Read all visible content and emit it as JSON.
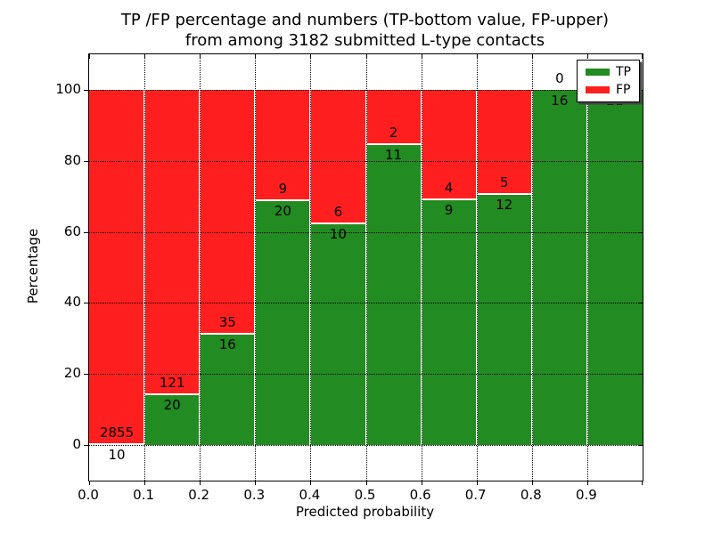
{
  "title": {
    "line1": "TP /FP percentage and numbers (TP-bottom value, FP-upper)",
    "line2": "from among 3182 submitted L-type contacts"
  },
  "axes": {
    "x_label": "Predicted probability",
    "y_label": "Percentage"
  },
  "legend": {
    "position": "upper right",
    "entries": [
      {
        "label": "TP",
        "color": "#228b22"
      },
      {
        "label": "FP",
        "color": "#ff1f1f"
      }
    ]
  },
  "chart_data": {
    "type": "bar",
    "stacked": true,
    "title": "TP /FP percentage and numbers (TP-bottom value, FP-upper)\nfrom among 3182 submitted L-type contacts",
    "xlabel": "Predicted probability",
    "ylabel": "Percentage",
    "xlim": [
      0.0,
      1.0
    ],
    "ylim": [
      -10,
      110
    ],
    "grid": "dotted",
    "bar_edge_color": "#ffffff",
    "bin_width": 0.1,
    "bin_starts": [
      0.0,
      0.1,
      0.2,
      0.3,
      0.4,
      0.5,
      0.6,
      0.7,
      0.8,
      0.9
    ],
    "x_tick_labels": [
      "0.0",
      "0.1",
      "0.2",
      "0.3",
      "0.4",
      "0.5",
      "0.6",
      "0.7",
      "0.8",
      "0.9"
    ],
    "y_tick_labels": [
      "0",
      "20",
      "40",
      "60",
      "80",
      "100"
    ],
    "y_tick_values": [
      0,
      20,
      40,
      60,
      80,
      100
    ],
    "series": [
      {
        "name": "TP",
        "color": "#228b22",
        "counts": [
          10,
          20,
          16,
          20,
          10,
          11,
          9,
          12,
          16,
          21
        ]
      },
      {
        "name": "FP",
        "color": "#ff1f1f",
        "counts": [
          2855,
          121,
          35,
          9,
          6,
          2,
          4,
          5,
          0,
          0
        ]
      }
    ],
    "tp_percent_of_bin": [
      0.35,
      14.18,
      31.37,
      68.97,
      62.5,
      84.62,
      69.23,
      70.59,
      100,
      100
    ],
    "total_contacts": 3182,
    "note_bar_labels": "FP count printed above TP/FP boundary, TP count below it"
  }
}
